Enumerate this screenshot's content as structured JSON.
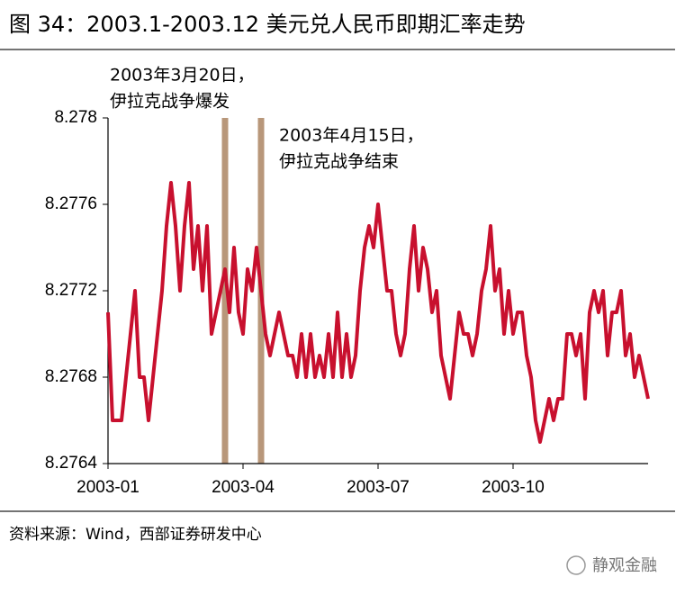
{
  "chart_data": {
    "type": "line",
    "title": "图 34：2003.1-2003.12 美元兑人民币即期汇率走势",
    "source": "资料来源：Wind，西部证券研发中心",
    "watermark": "静观金融",
    "categories": [
      "2003-01",
      null,
      null,
      null,
      null,
      null,
      null,
      null,
      null,
      null,
      null,
      null,
      null,
      null,
      null,
      null,
      null,
      null,
      null,
      null,
      null,
      null,
      null,
      null,
      null,
      null,
      null,
      null,
      null,
      null,
      "2003-04",
      null,
      null,
      null,
      null,
      null,
      null,
      null,
      null,
      null,
      null,
      null,
      null,
      null,
      null,
      null,
      null,
      null,
      null,
      null,
      null,
      null,
      null,
      null,
      null,
      null,
      null,
      null,
      null,
      null,
      "2003-07",
      null,
      null,
      null,
      null,
      null,
      null,
      null,
      null,
      null,
      null,
      null,
      null,
      null,
      null,
      null,
      null,
      null,
      null,
      null,
      null,
      null,
      null,
      null,
      null,
      null,
      null,
      null,
      null,
      null,
      "2003-10",
      null,
      null,
      null,
      null,
      null,
      null,
      null,
      null,
      null,
      null,
      null,
      null,
      null,
      null,
      null,
      null,
      null,
      null,
      null,
      null,
      null,
      null,
      null,
      null,
      null,
      null,
      null,
      null,
      null,
      null
    ],
    "series": [
      {
        "color": "#c8102e",
        "values": [
          8.2771,
          8.2766,
          8.2766,
          8.2766,
          8.2768,
          8.277,
          8.2772,
          8.2768,
          8.2768,
          8.2766,
          8.2768,
          8.277,
          8.2772,
          8.2775,
          8.2777,
          8.2775,
          8.2772,
          8.2775,
          8.2777,
          8.2773,
          8.2775,
          8.2772,
          8.2775,
          8.277,
          8.2771,
          8.2772,
          8.2773,
          8.2771,
          8.2774,
          8.2771,
          8.277,
          8.2773,
          8.2772,
          8.2774,
          8.2772,
          8.277,
          8.2769,
          8.277,
          8.2771,
          8.277,
          8.2769,
          8.2769,
          8.2768,
          8.277,
          8.2768,
          8.277,
          8.2768,
          8.2769,
          8.2768,
          8.277,
          8.2768,
          8.2771,
          8.2768,
          8.277,
          8.2768,
          8.2769,
          8.2772,
          8.2774,
          8.2775,
          8.2774,
          8.2776,
          8.2774,
          8.2772,
          8.2772,
          8.277,
          8.2769,
          8.277,
          8.2773,
          8.2775,
          8.2772,
          8.2774,
          8.2773,
          8.2771,
          8.2772,
          8.2769,
          8.2768,
          8.2767,
          8.2769,
          8.2771,
          8.277,
          8.277,
          8.2769,
          8.277,
          8.2772,
          8.2773,
          8.2775,
          8.2772,
          8.2773,
          8.277,
          8.2772,
          8.277,
          8.2771,
          8.2771,
          8.2769,
          8.2768,
          8.2766,
          8.2765,
          8.2766,
          8.2767,
          8.2766,
          8.2767,
          8.2767,
          8.277,
          8.277,
          8.2769,
          8.277,
          8.2767,
          8.2771,
          8.2772,
          8.2771,
          8.2772,
          8.2769,
          8.2771,
          8.2771,
          8.2772,
          8.2769,
          8.277,
          8.2768,
          8.2769,
          8.2768,
          8.2767
        ]
      }
    ],
    "ylim": [
      8.2764,
      8.278
    ],
    "yticks": [
      8.2764,
      8.2768,
      8.2772,
      8.2776,
      8.278
    ],
    "annotations": [
      {
        "index": 26,
        "color": "#b8977a",
        "lines": [
          "2003年3月20日，",
          "伊拉克战争爆发"
        ]
      },
      {
        "index": 34,
        "color": "#b8977a",
        "lines": [
          "2003年4月15日，",
          "伊拉克战争结束"
        ]
      }
    ]
  }
}
